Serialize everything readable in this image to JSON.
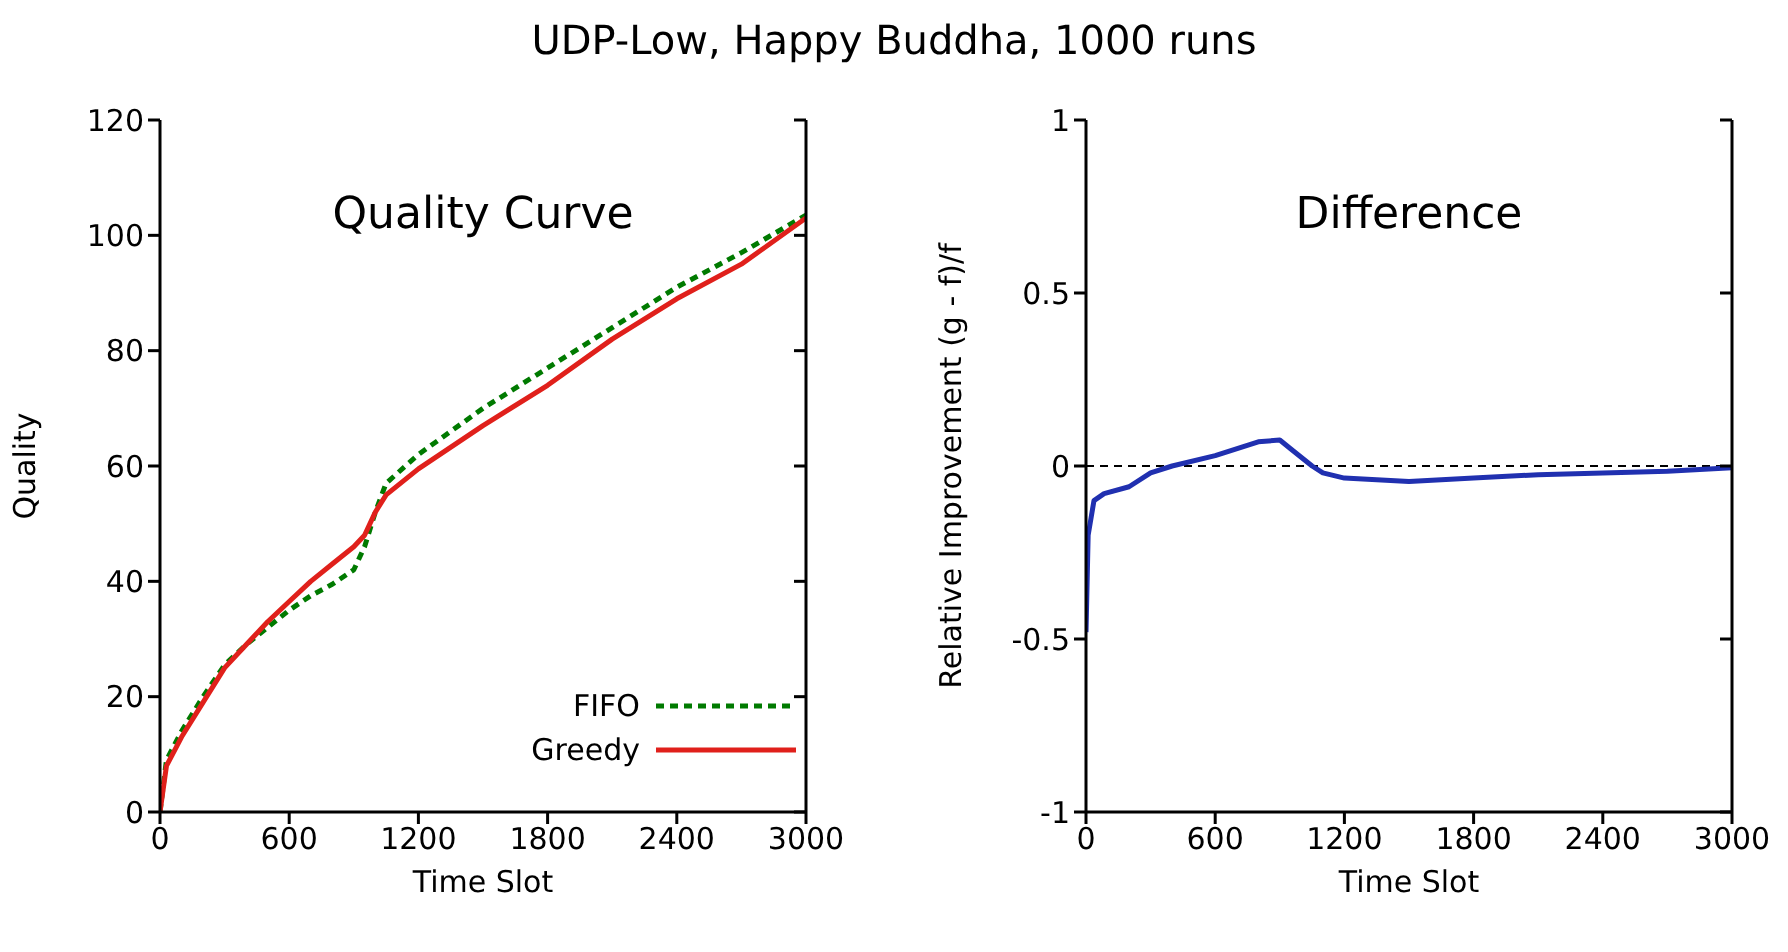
{
  "chart_data": [
    {
      "type": "line",
      "title": "UDP-Low, Happy Buddha, 1000 runs",
      "annotations": [
        "Quality Curve"
      ],
      "xlabel": "Time  Slot",
      "ylabel": "Quality",
      "xlim": [
        0,
        3000
      ],
      "xticks": [
        0,
        600,
        1200,
        1800,
        2400,
        3000
      ],
      "ylim": [
        0,
        120
      ],
      "yticks": [
        0,
        20,
        40,
        60,
        80,
        100,
        120
      ],
      "legend": "bottom right",
      "marker": "none",
      "grid": false,
      "series": [
        {
          "name": "FIFO",
          "color": "#007a00",
          "line_style": "dashed",
          "x": [
            0,
            30,
            100,
            200,
            300,
            400,
            500,
            600,
            700,
            800,
            900,
            950,
            1000,
            1050,
            1200,
            1500,
            1800,
            2100,
            2400,
            2700,
            3000
          ],
          "values": [
            0,
            9,
            14,
            20,
            25.5,
            29,
            32,
            35,
            37.5,
            39.5,
            42,
            46,
            52,
            57,
            62,
            70,
            77,
            84,
            91,
            97,
            103.5
          ]
        },
        {
          "name": "Greedy",
          "color": "#e0201b",
          "line_style": "solid",
          "x": [
            0,
            30,
            100,
            200,
            300,
            400,
            500,
            600,
            700,
            800,
            900,
            950,
            1000,
            1050,
            1200,
            1500,
            1800,
            2100,
            2400,
            2700,
            3000
          ],
          "values": [
            0,
            8,
            13,
            19,
            25,
            29,
            33,
            36.5,
            40,
            43,
            46,
            48,
            52,
            55,
            59.5,
            67,
            74,
            82,
            89,
            95,
            103
          ]
        }
      ]
    },
    {
      "type": "line",
      "annotations": [
        "Difference"
      ],
      "xlabel": "Time  Slot",
      "ylabel": "Relative Improvement (g - f)/f",
      "xlim": [
        0,
        3000
      ],
      "xticks": [
        0,
        600,
        1200,
        1800,
        2400,
        3000
      ],
      "ylim": [
        -1,
        1
      ],
      "yticks": [
        -1,
        -0.5,
        0,
        0.5,
        1
      ],
      "marker": "none",
      "grid": false,
      "ref_lines": [
        {
          "axis": "y",
          "value": 0,
          "color": "#000000",
          "line_style": "dashed"
        }
      ],
      "series": [
        {
          "color": "#2030b0",
          "line_style": "solid",
          "x": [
            0,
            10,
            37,
            84,
            200,
            300,
            400,
            600,
            800,
            900,
            950,
            1050,
            1100,
            1200,
            1500,
            1800,
            2100,
            2400,
            2700,
            3000
          ],
          "values": [
            -0.48,
            -0.2,
            -0.1,
            -0.08,
            -0.06,
            -0.02,
            0,
            0.03,
            0.07,
            0.075,
            0.05,
            0,
            -0.02,
            -0.035,
            -0.045,
            -0.035,
            -0.025,
            -0.02,
            -0.015,
            -0.005
          ]
        }
      ]
    }
  ]
}
